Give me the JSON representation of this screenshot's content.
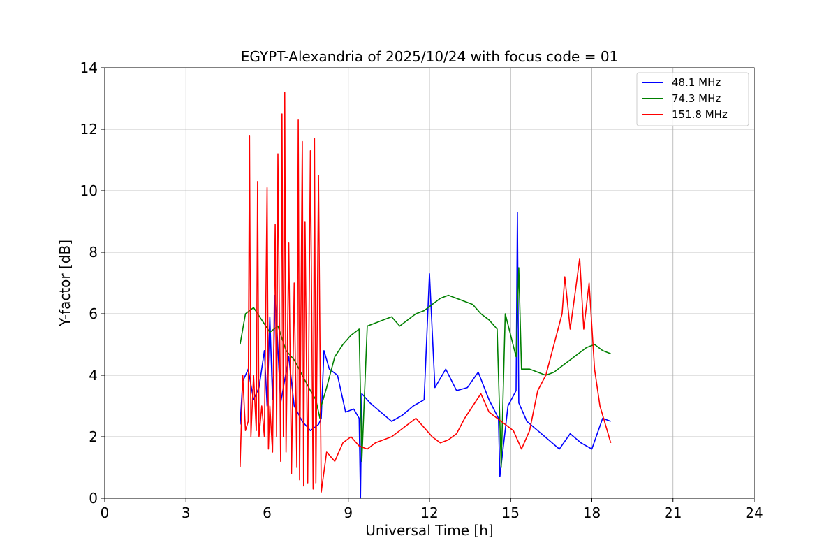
{
  "chart_data": {
    "type": "line",
    "title": "EGYPT-Alexandria of 2025/10/24 with focus code = 01",
    "xlabel": "Universal Time [h]",
    "ylabel": "Y-factor [dB]",
    "xlim": [
      0,
      24
    ],
    "ylim": [
      0,
      14
    ],
    "xticks": [
      0,
      3,
      6,
      9,
      12,
      15,
      18,
      21,
      24
    ],
    "yticks": [
      0,
      2,
      4,
      6,
      8,
      10,
      12,
      14
    ],
    "grid": true,
    "legend_position": "top-right",
    "series": [
      {
        "name": "48.1 MHz",
        "legend_label": "  48.1 MHz",
        "color": "#0000ff",
        "x": [
          5.0,
          5.1,
          5.3,
          5.5,
          5.7,
          5.9,
          6.0,
          6.1,
          6.2,
          6.3,
          6.5,
          6.8,
          7.0,
          7.3,
          7.6,
          7.9,
          8.0,
          8.1,
          8.3,
          8.6,
          8.9,
          9.2,
          9.4,
          9.45,
          9.5,
          9.8,
          10.2,
          10.6,
          11.0,
          11.4,
          11.8,
          12.0,
          12.2,
          12.6,
          13.0,
          13.4,
          13.8,
          14.2,
          14.55,
          14.6,
          14.9,
          15.2,
          15.25,
          15.3,
          15.6,
          16.0,
          16.4,
          16.8,
          17.2,
          17.6,
          18.0,
          18.4,
          18.7
        ],
        "y": [
          2.4,
          3.8,
          4.2,
          3.2,
          3.6,
          4.8,
          3.0,
          5.9,
          3.2,
          6.6,
          3.1,
          4.6,
          3.0,
          2.5,
          2.2,
          2.4,
          2.6,
          4.8,
          4.2,
          4.0,
          2.8,
          2.9,
          2.6,
          0.0,
          3.4,
          3.1,
          2.8,
          2.5,
          2.7,
          3.0,
          3.2,
          7.3,
          3.6,
          4.2,
          3.5,
          3.6,
          4.1,
          3.2,
          2.6,
          0.7,
          3.0,
          3.5,
          9.3,
          3.1,
          2.5,
          2.2,
          1.9,
          1.6,
          2.1,
          1.8,
          1.6,
          2.6,
          2.5
        ]
      },
      {
        "name": "74.3 MHz",
        "legend_label": "  74.3 MHz",
        "color": "#008000",
        "x": [
          5.0,
          5.2,
          5.5,
          5.8,
          6.1,
          6.4,
          6.7,
          7.0,
          7.3,
          7.6,
          7.8,
          7.95,
          8.0,
          8.2,
          8.5,
          8.8,
          9.1,
          9.4,
          9.5,
          9.7,
          10.0,
          10.3,
          10.6,
          10.9,
          11.2,
          11.5,
          11.8,
          12.1,
          12.4,
          12.7,
          13.0,
          13.3,
          13.6,
          13.9,
          14.2,
          14.5,
          14.65,
          14.8,
          15.0,
          15.2,
          15.3,
          15.4,
          15.7,
          16.0,
          16.3,
          16.6,
          16.9,
          17.2,
          17.5,
          17.8,
          18.1,
          18.4,
          18.7
        ],
        "y": [
          5.0,
          6.0,
          6.2,
          5.8,
          5.4,
          5.6,
          4.8,
          4.5,
          4.0,
          3.5,
          3.2,
          2.6,
          3.0,
          3.6,
          4.6,
          5.0,
          5.3,
          5.5,
          1.2,
          5.6,
          5.7,
          5.8,
          5.9,
          5.6,
          5.8,
          6.0,
          6.1,
          6.3,
          6.5,
          6.6,
          6.5,
          6.4,
          6.3,
          6.0,
          5.8,
          5.5,
          1.0,
          6.0,
          5.3,
          4.6,
          7.5,
          4.2,
          4.2,
          4.1,
          4.0,
          4.1,
          4.3,
          4.5,
          4.7,
          4.9,
          5.0,
          4.8,
          4.7
        ]
      },
      {
        "name": "151.8 MHz",
        "legend_label": "  151.8 MHz",
        "color": "#ff0000",
        "x": [
          5.0,
          5.1,
          5.2,
          5.3,
          5.35,
          5.4,
          5.5,
          5.6,
          5.65,
          5.7,
          5.8,
          5.9,
          6.0,
          6.05,
          6.1,
          6.2,
          6.3,
          6.35,
          6.4,
          6.5,
          6.55,
          6.6,
          6.65,
          6.7,
          6.8,
          6.9,
          7.0,
          7.1,
          7.15,
          7.2,
          7.3,
          7.35,
          7.4,
          7.5,
          7.6,
          7.7,
          7.75,
          7.8,
          7.9,
          8.0,
          8.2,
          8.5,
          8.8,
          9.1,
          9.4,
          9.7,
          10.0,
          10.3,
          10.6,
          10.9,
          11.2,
          11.5,
          11.8,
          12.1,
          12.4,
          12.7,
          13.0,
          13.3,
          13.6,
          13.9,
          14.2,
          14.5,
          14.8,
          15.1,
          15.4,
          15.7,
          16.0,
          16.3,
          16.6,
          16.9,
          17.0,
          17.2,
          17.4,
          17.55,
          17.7,
          17.9,
          18.1,
          18.3,
          18.5,
          18.7
        ],
        "y": [
          1.0,
          4.0,
          2.2,
          2.5,
          11.8,
          2.0,
          4.0,
          2.2,
          10.3,
          2.0,
          3.0,
          2.0,
          10.1,
          1.6,
          3.0,
          1.5,
          8.9,
          2.0,
          11.2,
          1.2,
          12.5,
          2.0,
          13.2,
          1.5,
          8.3,
          0.8,
          7.0,
          1.0,
          12.3,
          0.6,
          11.6,
          0.4,
          9.0,
          0.5,
          11.3,
          0.3,
          11.7,
          0.5,
          10.5,
          0.2,
          1.5,
          1.2,
          1.8,
          2.0,
          1.7,
          1.6,
          1.8,
          1.9,
          2.0,
          2.2,
          2.4,
          2.6,
          2.3,
          2.0,
          1.8,
          1.9,
          2.1,
          2.6,
          3.0,
          3.4,
          2.8,
          2.6,
          2.4,
          2.2,
          1.6,
          2.2,
          3.5,
          4.0,
          5.0,
          6.0,
          7.2,
          5.5,
          6.8,
          7.8,
          5.5,
          7.0,
          4.2,
          3.0,
          2.4,
          1.8
        ]
      }
    ]
  }
}
